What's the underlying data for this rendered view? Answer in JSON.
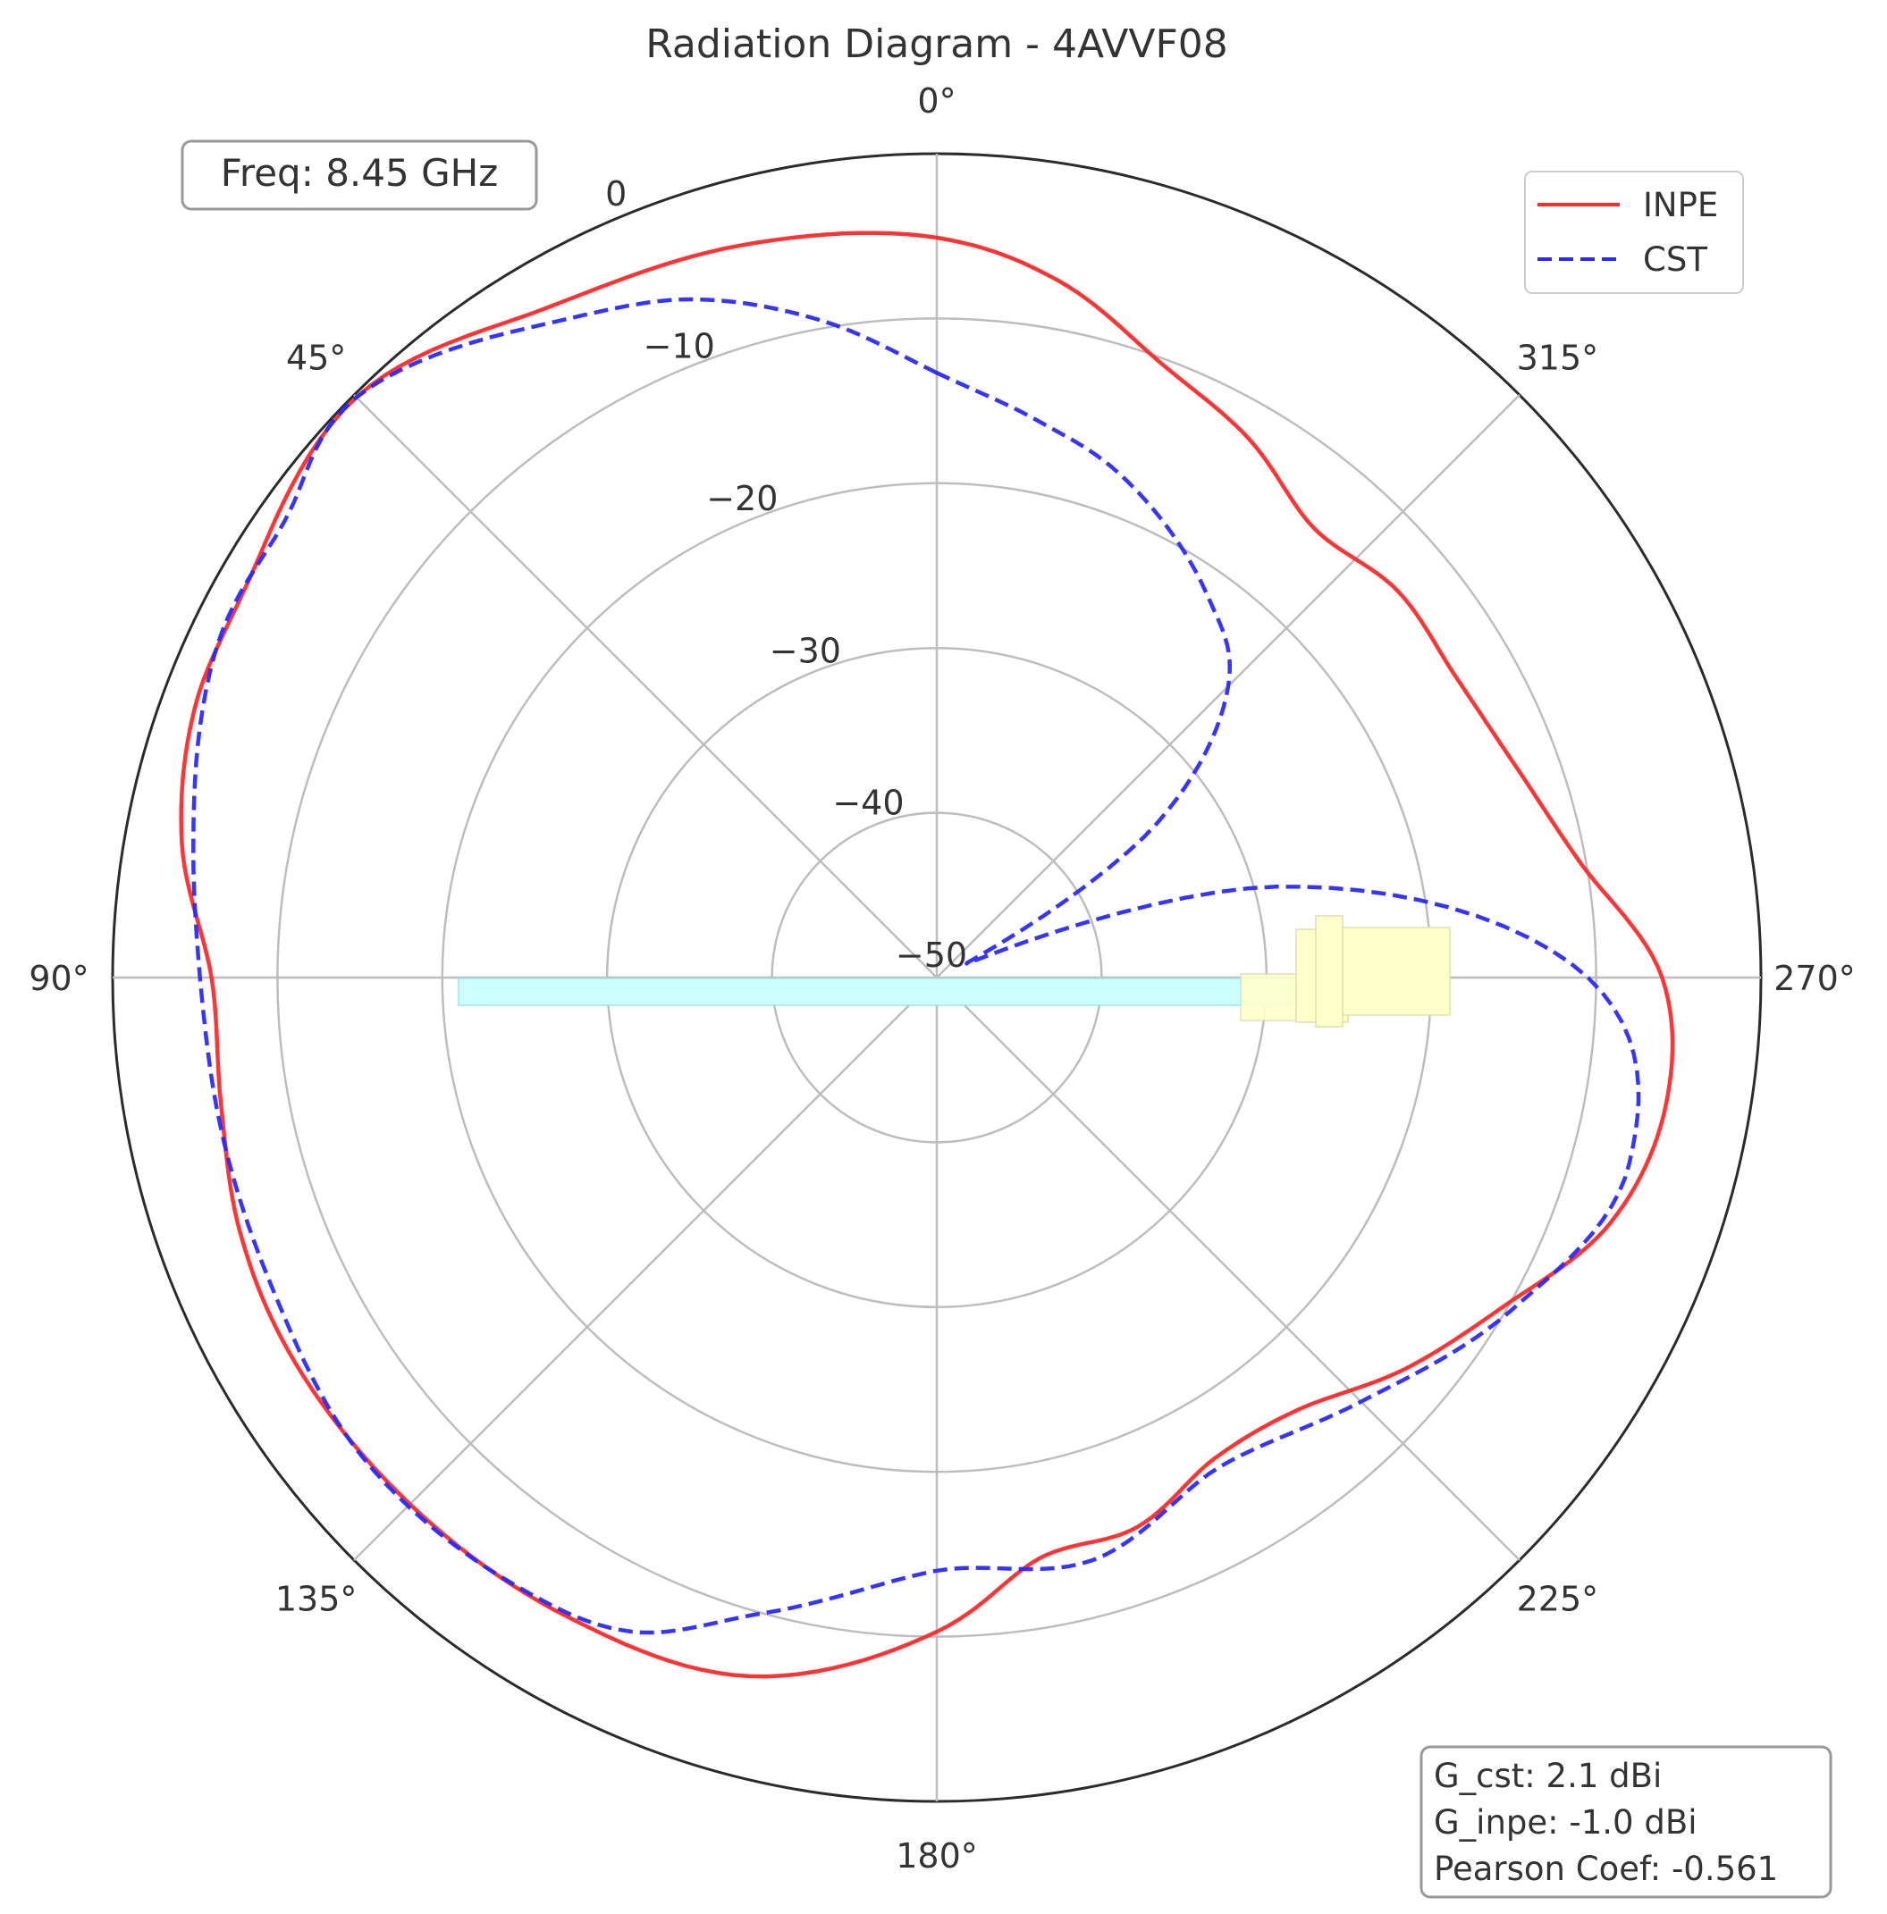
{
  "chart_data": {
    "type": "polar-line",
    "title": "Radiation Diagram - 4AVVF08",
    "theta_zero_location": "top",
    "theta_direction": "counterclockwise",
    "theta_ticks": [
      {
        "deg": 0,
        "label": "0°"
      },
      {
        "deg": 45,
        "label": "45°"
      },
      {
        "deg": 90,
        "label": "90°"
      },
      {
        "deg": 135,
        "label": "135°"
      },
      {
        "deg": 180,
        "label": "180°"
      },
      {
        "deg": 225,
        "label": "225°"
      },
      {
        "deg": 270,
        "label": "270°"
      },
      {
        "deg": 315,
        "label": "315°"
      }
    ],
    "r_range": [
      -50,
      0
    ],
    "r_ticks": [
      {
        "value": 0,
        "label": "0"
      },
      {
        "value": -10,
        "label": "−10"
      },
      {
        "value": -20,
        "label": "−20"
      },
      {
        "value": -30,
        "label": "−30"
      },
      {
        "value": -40,
        "label": "−40"
      },
      {
        "value": -50,
        "label": "−50"
      }
    ],
    "grid": true,
    "legend": {
      "placement": "top-right"
    },
    "series": [
      {
        "name": "INPE",
        "color": "#ff2a2a",
        "style": "solid",
        "points": [
          [
            0,
            -5.1
          ],
          [
            15,
            -4.0
          ],
          [
            30,
            -3.0
          ],
          [
            45,
            -0.2
          ],
          [
            60,
            -1.8
          ],
          [
            70,
            -2.1
          ],
          [
            80,
            -3.5
          ],
          [
            90,
            -6.0
          ],
          [
            100,
            -5.9
          ],
          [
            110,
            -5.0
          ],
          [
            120,
            -4.6
          ],
          [
            135,
            -4.8
          ],
          [
            150,
            -5.2
          ],
          [
            165,
            -6.1
          ],
          [
            180,
            -10.3
          ],
          [
            190,
            -14.2
          ],
          [
            200,
            -14.5
          ],
          [
            210,
            -16.3
          ],
          [
            220,
            -15.8
          ],
          [
            230,
            -13.0
          ],
          [
            240,
            -10.2
          ],
          [
            250,
            -6.5
          ],
          [
            260,
            -5.1
          ],
          [
            270,
            -6.0
          ],
          [
            280,
            -10.3
          ],
          [
            290,
            -12.6
          ],
          [
            300,
            -13.6
          ],
          [
            310,
            -13.5
          ],
          [
            320,
            -14.4
          ],
          [
            330,
            -12.2
          ],
          [
            340,
            -10.3
          ],
          [
            350,
            -7.1
          ],
          [
            360,
            -5.1
          ]
        ]
      },
      {
        "name": "CST",
        "color": "#2a2aff",
        "style": "dashed",
        "points": [
          [
            0,
            -13.3
          ],
          [
            10,
            -9.5
          ],
          [
            20,
            -6.2
          ],
          [
            30,
            -4.0
          ],
          [
            45,
            -0.2
          ],
          [
            55,
            -1.7
          ],
          [
            65,
            -1.9
          ],
          [
            80,
            -4.2
          ],
          [
            90,
            -5.3
          ],
          [
            100,
            -5.6
          ],
          [
            115,
            -5.5
          ],
          [
            130,
            -4.6
          ],
          [
            145,
            -5.1
          ],
          [
            155,
            -6.2
          ],
          [
            165,
            -10.1
          ],
          [
            180,
            -14.0
          ],
          [
            195,
            -13.4
          ],
          [
            210,
            -15.7
          ],
          [
            225,
            -13.6
          ],
          [
            240,
            -9.7
          ],
          [
            255,
            -6.5
          ],
          [
            270,
            -10.5
          ],
          [
            285,
            -28.7
          ],
          [
            295,
            -48.0
          ],
          [
            305,
            -33.7
          ],
          [
            315,
            -25.0
          ],
          [
            325,
            -21.5
          ],
          [
            340,
            -17.5
          ],
          [
            350,
            -15.6
          ],
          [
            360,
            -13.3
          ]
        ]
      }
    ],
    "annotations": {
      "freq": "Freq: 8.45 GHz",
      "stats": [
        "G_cst: 2.1 dBi",
        "G_inpe: -1.0 dBi",
        "Pearson Coef: -0.561"
      ]
    },
    "antenna_overlay": {
      "element_color": "#ccffff",
      "connector_color": "#ffffcc"
    }
  }
}
